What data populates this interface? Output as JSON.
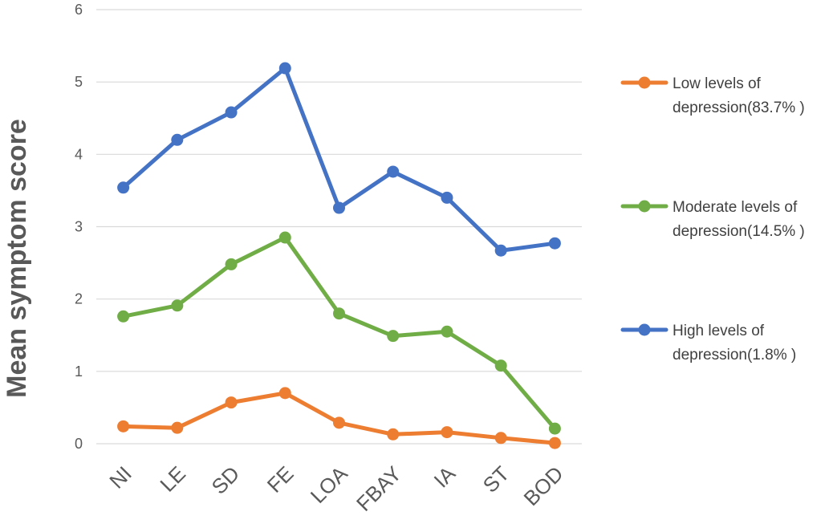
{
  "chart_data": {
    "type": "line",
    "ylabel": "Mean symptom score",
    "xlabel": "",
    "ylim": [
      0,
      6
    ],
    "yticks": [
      0,
      1,
      2,
      3,
      4,
      5,
      6
    ],
    "grid": true,
    "legend_position": "right",
    "categories": [
      "NI",
      "LE",
      "SD",
      "FE",
      "LOA",
      "FBAY",
      "IA",
      "ST",
      "BOD"
    ],
    "series": [
      {
        "name": "Low levels of depression(83.7% )",
        "legend_lines": [
          "Low levels of",
          "depression(83.7% )"
        ],
        "color": "#ED7D31",
        "values": [
          0.24,
          0.22,
          0.57,
          0.7,
          0.29,
          0.13,
          0.16,
          0.08,
          0.01
        ]
      },
      {
        "name": "Moderate levels of depression(14.5% )",
        "legend_lines": [
          "Moderate levels of",
          "depression(14.5% )"
        ],
        "color": "#70AD47",
        "values": [
          1.76,
          1.91,
          2.48,
          2.85,
          1.8,
          1.49,
          1.55,
          1.08,
          0.21
        ]
      },
      {
        "name": "High levels of depression(1.8% )",
        "legend_lines": [
          "High levels of",
          "depression(1.8% )"
        ],
        "color": "#4472C4",
        "values": [
          3.54,
          4.2,
          4.58,
          5.19,
          3.26,
          3.76,
          3.4,
          2.67,
          2.77
        ]
      }
    ]
  }
}
